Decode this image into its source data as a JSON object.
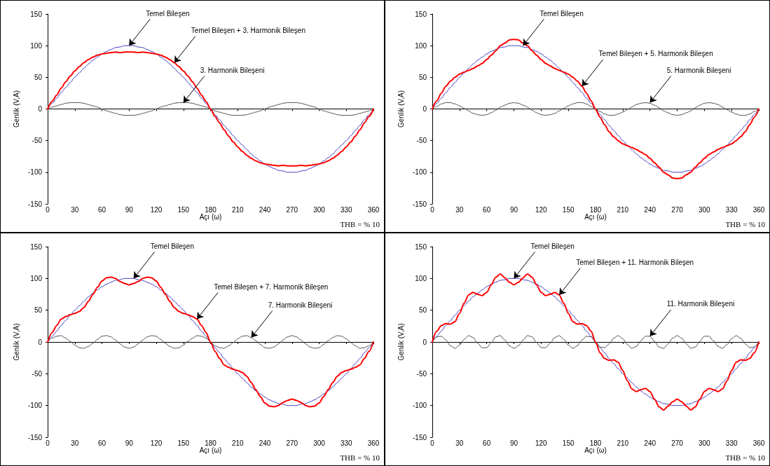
{
  "chart_data": [
    {
      "type": "line",
      "xlabel": "Açı (ω)",
      "ylabel": "Genlik (V,A)",
      "marker": "none",
      "x": [
        0,
        5,
        10,
        15,
        20,
        25,
        30,
        35,
        40,
        45,
        50,
        55,
        60,
        65,
        70,
        75,
        80,
        85,
        90,
        95,
        100,
        105,
        110,
        115,
        120,
        125,
        130,
        135,
        140,
        145,
        150,
        155,
        160,
        165,
        170,
        175,
        180,
        185,
        190,
        195,
        200,
        205,
        210,
        215,
        220,
        225,
        230,
        235,
        240,
        245,
        250,
        255,
        260,
        265,
        270,
        275,
        280,
        285,
        290,
        295,
        300,
        305,
        310,
        315,
        320,
        325,
        330,
        335,
        340,
        345,
        350,
        355,
        360
      ],
      "xlim": [
        0,
        360
      ],
      "xticks": [
        0,
        30,
        60,
        90,
        120,
        150,
        180,
        210,
        240,
        270,
        300,
        330,
        360
      ],
      "ylim": [
        -150,
        150
      ],
      "yticks": [
        -150,
        -100,
        -50,
        0,
        50,
        100,
        150
      ],
      "series": [
        {
          "color": "#3f3fbf",
          "values": [
            0,
            9,
            17,
            26,
            34,
            42,
            50,
            57,
            64,
            71,
            77,
            82,
            87,
            91,
            94,
            97,
            98,
            100,
            100,
            100,
            98,
            97,
            94,
            91,
            87,
            82,
            77,
            71,
            64,
            57,
            50,
            42,
            34,
            26,
            17,
            9,
            0,
            -9,
            -17,
            -26,
            -34,
            -42,
            -50,
            -57,
            -64,
            -71,
            -77,
            -82,
            -87,
            -91,
            -94,
            -97,
            -98,
            -100,
            -100,
            -100,
            -98,
            -97,
            -94,
            -91,
            -87,
            -82,
            -77,
            -71,
            -64,
            -57,
            -50,
            -42,
            -34,
            -26,
            -17,
            -9,
            0
          ]
        },
        {
          "color": "#505050",
          "values": [
            0,
            3,
            5,
            7,
            9,
            10,
            10,
            10,
            9,
            7,
            5,
            3,
            0,
            -3,
            -5,
            -7,
            -9,
            -10,
            -10,
            -10,
            -9,
            -7,
            -5,
            -3,
            0,
            3,
            5,
            7,
            9,
            10,
            10,
            10,
            9,
            7,
            5,
            3,
            0,
            -3,
            -5,
            -7,
            -9,
            -10,
            -10,
            -10,
            -9,
            -7,
            -5,
            -3,
            0,
            3,
            5,
            7,
            9,
            10,
            10,
            10,
            9,
            7,
            5,
            3,
            0,
            -3,
            -5,
            -7,
            -9,
            -10,
            -10,
            -10,
            -9,
            -7,
            -5,
            -3,
            0
          ]
        },
        {
          "color": "#ff0000",
          "values": [
            0,
            12,
            22,
            33,
            43,
            52,
            60,
            67,
            73,
            78,
            82,
            85,
            87,
            88,
            89,
            90,
            89,
            90,
            90,
            90,
            89,
            90,
            89,
            88,
            87,
            85,
            82,
            78,
            73,
            67,
            60,
            52,
            43,
            33,
            22,
            12,
            0,
            -12,
            -22,
            -33,
            -43,
            -52,
            -60,
            -67,
            -73,
            -78,
            -82,
            -85,
            -87,
            -88,
            -89,
            -90,
            -89,
            -90,
            -90,
            -90,
            -89,
            -90,
            -89,
            -88,
            -87,
            -85,
            -82,
            -78,
            -73,
            -67,
            -60,
            -52,
            -43,
            -33,
            -22,
            -12,
            0
          ]
        }
      ],
      "annotations": [
        {
          "text": "Temel Bileşen",
          "x": 90,
          "y": 100
        },
        {
          "text": "Temel Bileşen + 3. Harmonik Bileşen",
          "x": 140,
          "y": 73
        },
        {
          "text": "3. Harmonik Bileşeni",
          "x": 150,
          "y": 10
        },
        "THB = % 10"
      ]
    },
    {
      "type": "line",
      "xlabel": "Açı (ω)",
      "ylabel": "Genlik (V,A)",
      "marker": "none",
      "x": [
        0,
        5,
        10,
        15,
        20,
        25,
        30,
        35,
        40,
        45,
        50,
        55,
        60,
        65,
        70,
        75,
        80,
        85,
        90,
        95,
        100,
        105,
        110,
        115,
        120,
        125,
        130,
        135,
        140,
        145,
        150,
        155,
        160,
        165,
        170,
        175,
        180,
        185,
        190,
        195,
        200,
        205,
        210,
        215,
        220,
        225,
        230,
        235,
        240,
        245,
        250,
        255,
        260,
        265,
        270,
        275,
        280,
        285,
        290,
        295,
        300,
        305,
        310,
        315,
        320,
        325,
        330,
        335,
        340,
        345,
        350,
        355,
        360
      ],
      "xlim": [
        0,
        360
      ],
      "xticks": [
        0,
        30,
        60,
        90,
        120,
        150,
        180,
        210,
        240,
        270,
        300,
        330,
        360
      ],
      "ylim": [
        -150,
        150
      ],
      "yticks": [
        -150,
        -100,
        -50,
        0,
        50,
        100,
        150
      ],
      "series": [
        {
          "color": "#3f3fbf",
          "values": [
            0,
            9,
            17,
            26,
            34,
            42,
            50,
            57,
            64,
            71,
            77,
            82,
            87,
            91,
            94,
            97,
            98,
            100,
            100,
            100,
            98,
            97,
            94,
            91,
            87,
            82,
            77,
            71,
            64,
            57,
            50,
            42,
            34,
            26,
            17,
            9,
            0,
            -9,
            -17,
            -26,
            -34,
            -42,
            -50,
            -57,
            -64,
            -71,
            -77,
            -82,
            -87,
            -91,
            -94,
            -97,
            -98,
            -100,
            -100,
            -100,
            -98,
            -97,
            -94,
            -91,
            -87,
            -82,
            -77,
            -71,
            -64,
            -57,
            -50,
            -42,
            -34,
            -26,
            -17,
            -9,
            0
          ]
        },
        {
          "color": "#505050",
          "values": [
            0,
            4,
            8,
            10,
            10,
            8,
            5,
            1,
            -3,
            -7,
            -9,
            -10,
            -9,
            -6,
            -2,
            3,
            6,
            9,
            10,
            9,
            6,
            3,
            -2,
            -6,
            -9,
            -10,
            -9,
            -7,
            -3,
            1,
            5,
            8,
            10,
            10,
            8,
            4,
            0,
            -4,
            -8,
            -10,
            -10,
            -8,
            -5,
            -1,
            3,
            7,
            9,
            10,
            9,
            6,
            2,
            -3,
            -6,
            -9,
            -10,
            -9,
            -6,
            -3,
            2,
            6,
            9,
            10,
            9,
            7,
            3,
            -1,
            -5,
            -8,
            -10,
            -10,
            -8,
            -4,
            0
          ]
        },
        {
          "color": "#ff0000",
          "values": [
            0,
            13,
            25,
            36,
            44,
            50,
            55,
            58,
            61,
            64,
            68,
            72,
            78,
            85,
            92,
            100,
            104,
            109,
            110,
            109,
            104,
            100,
            92,
            85,
            78,
            72,
            68,
            64,
            61,
            58,
            55,
            50,
            44,
            36,
            25,
            13,
            0,
            -13,
            -25,
            -36,
            -44,
            -50,
            -55,
            -58,
            -61,
            -64,
            -68,
            -72,
            -78,
            -85,
            -92,
            -100,
            -104,
            -109,
            -110,
            -109,
            -104,
            -100,
            -92,
            -85,
            -78,
            -72,
            -68,
            -64,
            -61,
            -58,
            -55,
            -50,
            -44,
            -36,
            -25,
            -13,
            0
          ]
        }
      ],
      "annotations": [
        {
          "text": "Temel Bileşen",
          "x": 100,
          "y": 100
        },
        {
          "text": "Temel Bileşen + 5. Harmonik Bileşen",
          "x": 165,
          "y": 36
        },
        {
          "text": "5. Harmonik Bileşeni",
          "x": 240,
          "y": 10
        },
        "THB = % 10"
      ]
    },
    {
      "type": "line",
      "xlabel": "Açı (ω)",
      "ylabel": "Genlik (V,A)",
      "marker": "none",
      "x": [
        0,
        5,
        10,
        15,
        20,
        25,
        30,
        35,
        40,
        45,
        50,
        55,
        60,
        65,
        70,
        75,
        80,
        85,
        90,
        95,
        100,
        105,
        110,
        115,
        120,
        125,
        130,
        135,
        140,
        145,
        150,
        155,
        160,
        165,
        170,
        175,
        180,
        185,
        190,
        195,
        200,
        205,
        210,
        215,
        220,
        225,
        230,
        235,
        240,
        245,
        250,
        255,
        260,
        265,
        270,
        275,
        280,
        285,
        290,
        295,
        300,
        305,
        310,
        315,
        320,
        325,
        330,
        335,
        340,
        345,
        350,
        355,
        360
      ],
      "xlim": [
        0,
        360
      ],
      "xticks": [
        0,
        30,
        60,
        90,
        120,
        150,
        180,
        210,
        240,
        270,
        300,
        330,
        360
      ],
      "ylim": [
        -150,
        150
      ],
      "yticks": [
        -150,
        -100,
        -50,
        0,
        50,
        100,
        150
      ],
      "series": [
        {
          "color": "#3f3fbf",
          "values": [
            0,
            9,
            17,
            26,
            34,
            42,
            50,
            57,
            64,
            71,
            77,
            82,
            87,
            91,
            94,
            97,
            98,
            100,
            100,
            100,
            98,
            97,
            94,
            91,
            87,
            82,
            77,
            71,
            64,
            57,
            50,
            42,
            34,
            26,
            17,
            9,
            0,
            -9,
            -17,
            -26,
            -34,
            -42,
            -50,
            -57,
            -64,
            -71,
            -77,
            -82,
            -87,
            -91,
            -94,
            -97,
            -98,
            -100,
            -100,
            -100,
            -98,
            -97,
            -94,
            -91,
            -87,
            -82,
            -77,
            -71,
            -64,
            -57,
            -50,
            -42,
            -34,
            -26,
            -17,
            -9,
            0
          ]
        },
        {
          "color": "#505050",
          "values": [
            0,
            6,
            9,
            10,
            6,
            1,
            -5,
            -9,
            -10,
            -7,
            -2,
            4,
            9,
            10,
            8,
            3,
            -3,
            -8,
            -10,
            -8,
            -3,
            3,
            8,
            10,
            9,
            4,
            -2,
            -7,
            -10,
            -9,
            -5,
            1,
            6,
            10,
            9,
            6,
            0,
            -6,
            -9,
            -10,
            -6,
            -1,
            5,
            9,
            10,
            7,
            2,
            -4,
            -9,
            -10,
            -8,
            -3,
            3,
            8,
            10,
            8,
            3,
            -3,
            -8,
            -10,
            -9,
            -4,
            2,
            7,
            10,
            9,
            5,
            -1,
            -6,
            -10,
            -9,
            -6,
            0
          ]
        },
        {
          "color": "#ff0000",
          "values": [
            0,
            15,
            26,
            36,
            40,
            43,
            45,
            48,
            54,
            64,
            75,
            86,
            96,
            101,
            102,
            100,
            95,
            92,
            90,
            92,
            95,
            100,
            102,
            101,
            96,
            86,
            75,
            64,
            54,
            48,
            45,
            43,
            40,
            36,
            26,
            15,
            0,
            -15,
            -26,
            -36,
            -40,
            -43,
            -45,
            -48,
            -54,
            -64,
            -75,
            -86,
            -96,
            -101,
            -102,
            -100,
            -95,
            -92,
            -90,
            -92,
            -95,
            -100,
            -102,
            -101,
            -96,
            -86,
            -75,
            -64,
            -54,
            -48,
            -45,
            -43,
            -40,
            -36,
            -26,
            -15,
            0
          ]
        }
      ],
      "annotations": [
        {
          "text": "Temel Bileşen",
          "x": 95,
          "y": 100
        },
        {
          "text": "Temel Bileşen + 7. Harmonik Bileşen",
          "x": 165,
          "y": 36
        },
        {
          "text": "7. Harmonik Bileşeni",
          "x": 225,
          "y": 7
        },
        "THB = % 10"
      ]
    },
    {
      "type": "line",
      "xlabel": "Açı (ω)",
      "ylabel": "Genlik (V,A)",
      "marker": "none",
      "x": [
        0,
        5,
        10,
        15,
        20,
        25,
        30,
        35,
        40,
        45,
        50,
        55,
        60,
        65,
        70,
        75,
        80,
        85,
        90,
        95,
        100,
        105,
        110,
        115,
        120,
        125,
        130,
        135,
        140,
        145,
        150,
        155,
        160,
        165,
        170,
        175,
        180,
        185,
        190,
        195,
        200,
        205,
        210,
        215,
        220,
        225,
        230,
        235,
        240,
        245,
        250,
        255,
        260,
        265,
        270,
        275,
        280,
        285,
        290,
        295,
        300,
        305,
        310,
        315,
        320,
        325,
        330,
        335,
        340,
        345,
        350,
        355,
        360
      ],
      "xlim": [
        0,
        360
      ],
      "xticks": [
        0,
        30,
        60,
        90,
        120,
        150,
        180,
        210,
        240,
        270,
        300,
        330,
        360
      ],
      "ylim": [
        -150,
        150
      ],
      "yticks": [
        -150,
        -100,
        -50,
        0,
        50,
        100,
        150
      ],
      "series": [
        {
          "color": "#3f3fbf",
          "values": [
            0,
            9,
            17,
            26,
            34,
            42,
            50,
            57,
            64,
            71,
            77,
            82,
            87,
            91,
            94,
            97,
            98,
            100,
            100,
            100,
            98,
            97,
            94,
            91,
            87,
            82,
            77,
            71,
            64,
            57,
            50,
            42,
            34,
            26,
            17,
            9,
            0,
            -9,
            -17,
            -26,
            -34,
            -42,
            -50,
            -57,
            -64,
            -71,
            -77,
            -82,
            -87,
            -91,
            -94,
            -97,
            -98,
            -100,
            -100,
            -100,
            -98,
            -97,
            -94,
            -91,
            -87,
            -82,
            -77,
            -71,
            -64,
            -57,
            -50,
            -42,
            -34,
            -26,
            -17,
            -9,
            0
          ]
        },
        {
          "color": "#505050",
          "values": [
            0,
            8,
            9,
            3,
            -6,
            -10,
            -5,
            4,
            10,
            7,
            -2,
            -9,
            -9,
            -1,
            8,
            10,
            3,
            -6,
            -10,
            -6,
            3,
            10,
            8,
            -1,
            -9,
            -9,
            -2,
            7,
            10,
            4,
            -5,
            -10,
            -6,
            3,
            9,
            8,
            0,
            -8,
            -9,
            -3,
            6,
            10,
            5,
            -4,
            -10,
            -7,
            2,
            9,
            9,
            1,
            -8,
            -10,
            -3,
            6,
            10,
            6,
            -3,
            -10,
            -8,
            1,
            9,
            9,
            2,
            -7,
            -10,
            -4,
            5,
            10,
            6,
            -3,
            -9,
            -8,
            0
          ]
        },
        {
          "color": "#ff0000",
          "values": [
            0,
            17,
            26,
            29,
            28,
            32,
            45,
            61,
            74,
            78,
            75,
            73,
            78,
            90,
            102,
            107,
            101,
            94,
            90,
            94,
            101,
            107,
            102,
            90,
            78,
            73,
            75,
            78,
            74,
            61,
            45,
            32,
            28,
            29,
            26,
            17,
            0,
            -17,
            -26,
            -29,
            -28,
            -32,
            -45,
            -61,
            -74,
            -78,
            -75,
            -73,
            -78,
            -90,
            -102,
            -107,
            -101,
            -94,
            -90,
            -94,
            -101,
            -107,
            -102,
            -90,
            -78,
            -73,
            -75,
            -78,
            -74,
            -61,
            -45,
            -32,
            -28,
            -29,
            -26,
            -17,
            0
          ]
        }
      ],
      "annotations": [
        {
          "text": "Temel Bileşen",
          "x": 90,
          "y": 100
        },
        {
          "text": "Temel Bileşen + 11. Harmonik Bileşen",
          "x": 140,
          "y": 74
        },
        {
          "text": "11. Harmonik Bileşeni",
          "x": 240,
          "y": 9
        },
        "THB = % 10"
      ]
    }
  ]
}
